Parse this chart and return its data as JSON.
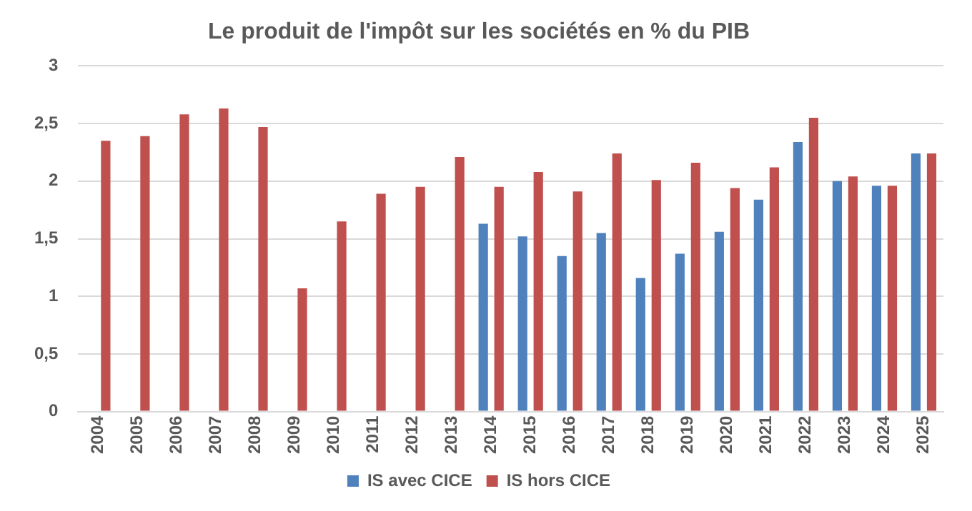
{
  "chart_data": {
    "type": "bar",
    "title": "Le produit de l'impôt sur les sociétés en % du PIB",
    "categories": [
      "2004",
      "2005",
      "2006",
      "2007",
      "2008",
      "2009",
      "2010",
      "2011",
      "2012",
      "2013",
      "2014",
      "2015",
      "2016",
      "2017",
      "2018",
      "2019",
      "2020",
      "2021",
      "2022",
      "2023",
      "2024",
      "2025"
    ],
    "series": [
      {
        "name": "IS avec CICE",
        "color": "#4f81bd",
        "values": [
          null,
          null,
          null,
          null,
          null,
          null,
          null,
          null,
          null,
          null,
          1.63,
          1.52,
          1.35,
          1.55,
          1.16,
          1.37,
          1.56,
          1.84,
          2.34,
          2.0,
          1.96,
          2.24
        ]
      },
      {
        "name": "IS hors CICE",
        "color": "#c0504d",
        "values": [
          2.35,
          2.39,
          2.58,
          2.63,
          2.47,
          1.07,
          1.65,
          1.89,
          1.95,
          2.21,
          1.95,
          2.08,
          1.91,
          2.24,
          2.01,
          2.16,
          1.94,
          2.12,
          2.55,
          2.04,
          1.96,
          2.24
        ]
      }
    ],
    "ylim": [
      0,
      3
    ],
    "yticks": [
      0,
      {
        "value": 0.5,
        "label": "0,5"
      },
      1,
      {
        "value": 1.5,
        "label": "1,5"
      },
      2,
      {
        "value": 2.5,
        "label": "2,5"
      },
      3
    ],
    "grid": "y",
    "legend": "bottom"
  }
}
